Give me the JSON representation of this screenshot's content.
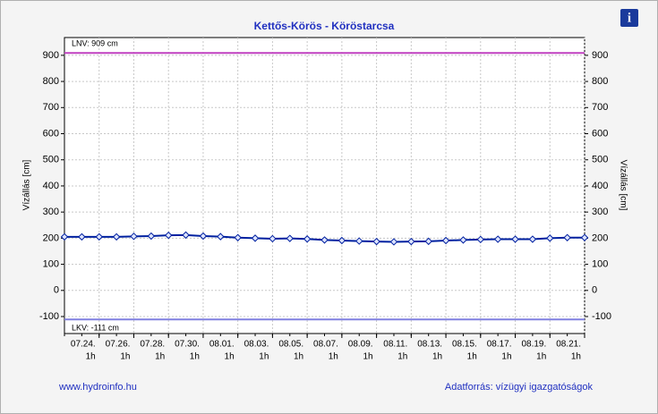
{
  "chart_data": {
    "type": "line",
    "title": "Kettős-Körös - Köröstarcsa",
    "ylabel": "Vízállás [cm]",
    "ylabel_right": "Vízállás [cm]",
    "footer_left": "www.hydroinfo.hu",
    "footer_right": "Adatforrás: vízügyi igazgatóságok",
    "xtick_sublabel": "1h",
    "x": [
      0,
      1,
      2,
      3,
      4,
      5,
      6,
      7,
      8,
      9,
      10,
      11,
      12,
      13,
      14,
      15,
      16,
      17,
      18,
      19,
      20,
      21,
      22,
      23,
      24,
      25,
      26,
      27,
      28,
      29,
      30
    ],
    "series": [
      {
        "color": "#0020a0",
        "values": [
          205,
          205,
          205,
          205,
          207,
          208,
          211,
          212,
          208,
          206,
          202,
          200,
          198,
          199,
          197,
          193,
          191,
          189,
          187,
          186,
          187,
          188,
          191,
          193,
          195,
          196,
          196,
          196,
          200,
          202,
          202
        ]
      }
    ],
    "xlim": [
      0,
      30
    ],
    "xticks": [
      {
        "value": 2,
        "label": "07.24."
      },
      {
        "value": 4,
        "label": "07.26."
      },
      {
        "value": 6,
        "label": "07.28."
      },
      {
        "value": 8,
        "label": "07.30."
      },
      {
        "value": 10,
        "label": "08.01."
      },
      {
        "value": 12,
        "label": "08.03."
      },
      {
        "value": 14,
        "label": "08.05."
      },
      {
        "value": 16,
        "label": "08.07."
      },
      {
        "value": 18,
        "label": "08.09."
      },
      {
        "value": 20,
        "label": "08.11."
      },
      {
        "value": 22,
        "label": "08.13."
      },
      {
        "value": 24,
        "label": "08.15."
      },
      {
        "value": 26,
        "label": "08.17."
      },
      {
        "value": 28,
        "label": "08.19."
      },
      {
        "value": 30,
        "label": "08.21."
      }
    ],
    "ylim": [
      -165,
      968
    ],
    "yticks": [
      -100,
      0,
      100,
      200,
      300,
      400,
      500,
      600,
      700,
      800,
      900
    ],
    "grid": true,
    "reference_lines": [
      {
        "label": "LNV: 909 cm",
        "value": 909,
        "color": "#c040c0"
      },
      {
        "label": "LKV: -111 cm",
        "value": -111,
        "color": "#8080e0"
      }
    ]
  }
}
